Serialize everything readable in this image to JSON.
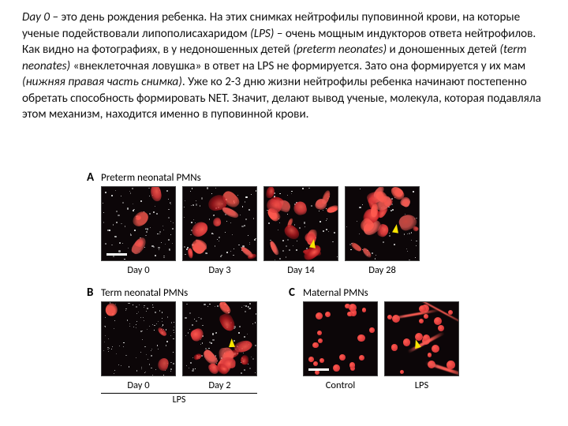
{
  "paragraph": {
    "s1a": "Day 0",
    "s1b": " – это день рождения ребенка. На этих снимках нейтрофилы пуповинной крови, на которые ученые подействовали липополисахаридом ",
    "s1c": "(LPS)",
    "s1d": " – очень мощным индукторов ответа нейтрофилов. Как видно на фотографиях, в у недоношенных детей ",
    "s1e": "(preterm neonates)",
    "s1f": " и доношенных детей ",
    "s1g": "(term neonates)",
    "s1h": " «внеклеточная ловушка» в ответ на LPS не формируется. Зато она формируется у их мам ",
    "s1i": "(нижняя правая часть снимка)",
    "s1j": ". Уже ко 2-3 дню жизни нейтрофилы ребенка начинают постепенно обретать способность формировать NET. Значит, делают вывод ученые, молекула, которая подавляла этом механизм, находится именно в пуповинной крови."
  },
  "figure": {
    "panelA": {
      "letter": "A",
      "title": "Preterm neonatal PMNs",
      "labels": [
        "Day 0",
        "Day 3",
        "Day 14",
        "Day 28"
      ]
    },
    "panelB": {
      "letter": "B",
      "title": "Term neonatal PMNs",
      "labels": [
        "Day 0",
        "Day 2"
      ],
      "group": "LPS"
    },
    "panelC": {
      "letter": "C",
      "title": "Maternal PMNs",
      "labels": [
        "Control",
        "LPS"
      ]
    },
    "palette": {
      "bg": "#0c0608",
      "red1": "#b1171d",
      "red2": "#d9383a",
      "red3": "#e85a54",
      "redBright": "#ff5a4f",
      "white": "#ffffff",
      "grey": "#b8b8b8"
    },
    "microA0": {
      "scale": 26,
      "red_blobs": 6,
      "white_dots": 90
    },
    "microA3": {
      "red_blobs": 10,
      "white_dots": 80
    },
    "microA14": {
      "red_blobs": 16,
      "arrow": true,
      "white_dots": 60
    },
    "microA28": {
      "red_blobs": 20,
      "arrow": true,
      "white_dots": 45
    },
    "microB0": {
      "red_blobs": 3,
      "white_dots": 120,
      "dense": true
    },
    "microB2": {
      "red_blobs": 14,
      "arrow": true,
      "white_dots": 110
    },
    "microCctrl": {
      "scale": 26,
      "red_nodes": 22
    },
    "microClps": {
      "red_nodes": 20,
      "streaks": 4,
      "arrow": true
    }
  }
}
